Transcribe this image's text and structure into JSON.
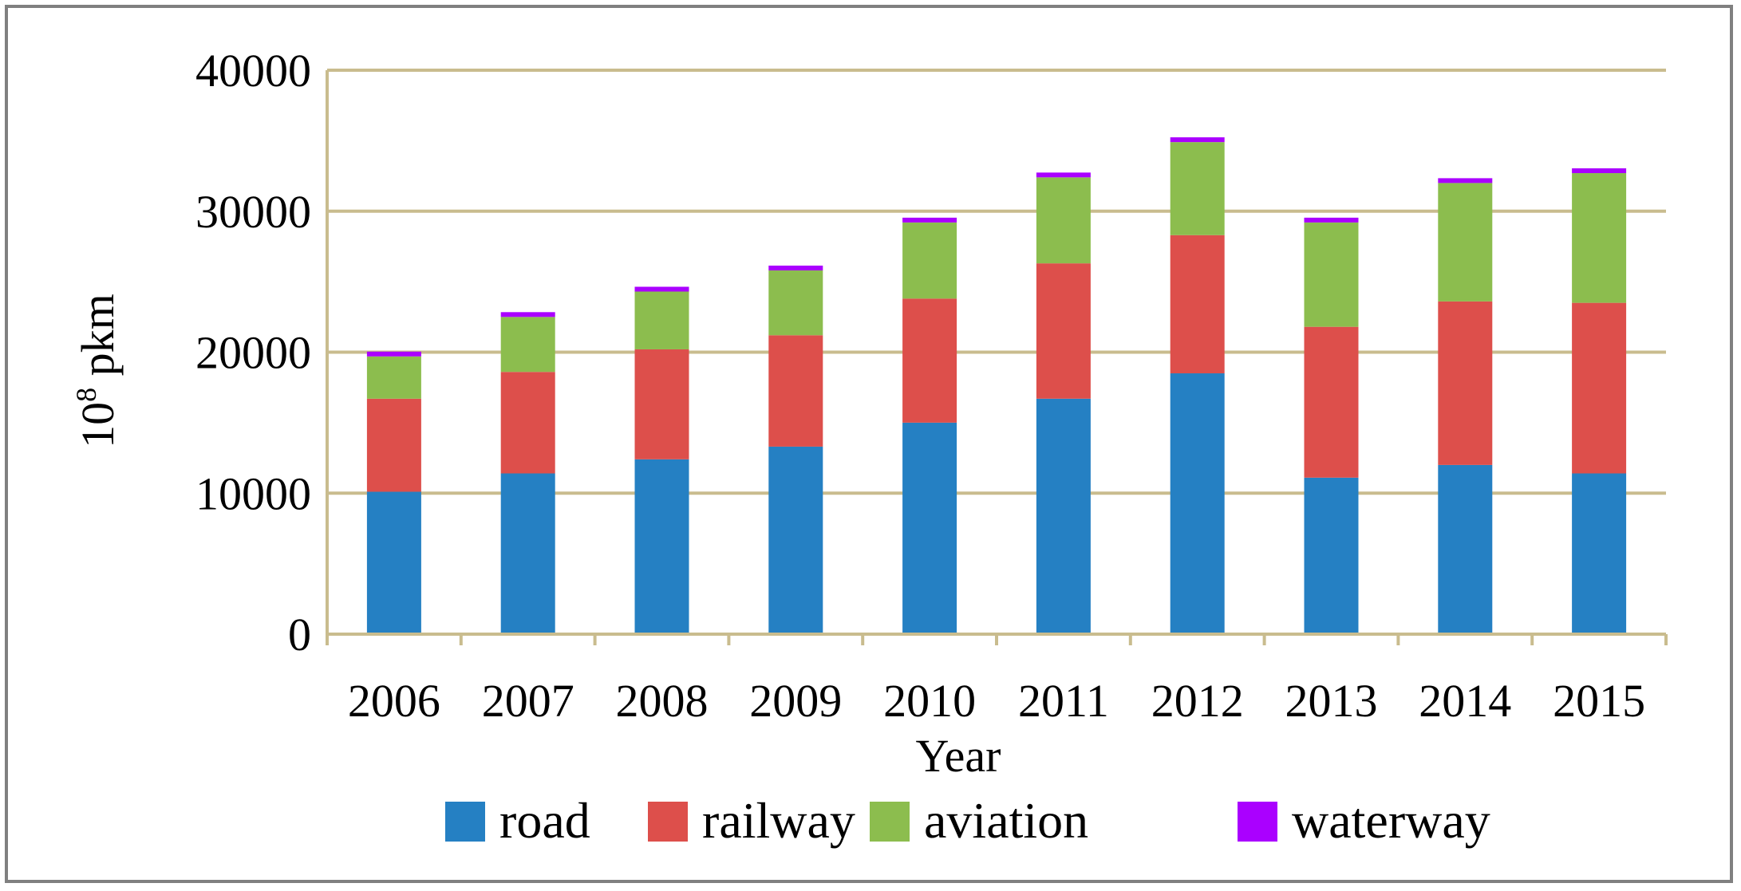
{
  "chart_data": {
    "type": "bar",
    "stacked": true,
    "title": "",
    "xlabel": "Year",
    "ylabel": "10",
    "ylabel_sup": "8",
    "ylabel_suffix": " pkm",
    "ylim": [
      0,
      40000
    ],
    "yticks": [
      0,
      10000,
      20000,
      30000,
      40000
    ],
    "ytick_labels": [
      "0",
      "10000",
      "20000",
      "30000",
      "40000"
    ],
    "grid": true,
    "legend_position": "bottom",
    "categories": [
      "2006",
      "2007",
      "2008",
      "2009",
      "2010",
      "2011",
      "2012",
      "2013",
      "2014",
      "2015"
    ],
    "series": [
      {
        "name": "road",
        "color": "#2580C3",
        "values": [
          10100,
          11400,
          12400,
          13300,
          15000,
          16700,
          18500,
          11100,
          12000,
          11400
        ]
      },
      {
        "name": "railway",
        "color": "#DD4F4B",
        "values": [
          6600,
          7200,
          7800,
          7900,
          8800,
          9600,
          9800,
          10700,
          11600,
          12100
        ]
      },
      {
        "name": "aviation",
        "color": "#8CBD4E",
        "values": [
          3000,
          3900,
          4100,
          4600,
          5400,
          6100,
          6600,
          7400,
          8400,
          9200
        ]
      },
      {
        "name": "waterway",
        "color": "#AA00FF",
        "values": [
          150,
          200,
          200,
          200,
          250,
          250,
          250,
          250,
          250,
          250
        ]
      }
    ]
  }
}
